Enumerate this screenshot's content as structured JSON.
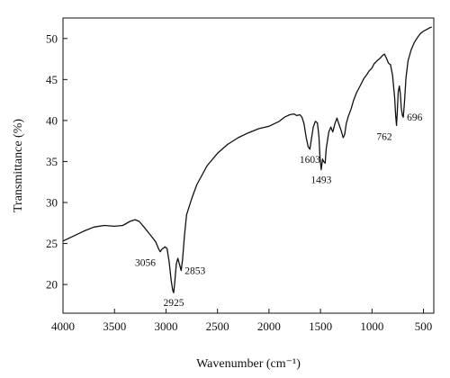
{
  "chart_data": {
    "type": "line",
    "title": "",
    "xlabel": "Wavenumber (cm⁻¹)",
    "ylabel": "Transmittance (%)",
    "xlim": [
      4000,
      400
    ],
    "ylim": [
      16.5,
      52.5
    ],
    "x_reversed": true,
    "grid": false,
    "x_ticks": [
      4000,
      3500,
      3000,
      2500,
      2000,
      1500,
      1000,
      500
    ],
    "y_ticks": [
      20,
      25,
      30,
      35,
      40,
      45,
      50
    ],
    "series": [
      {
        "color": "#111111",
        "points": [
          [
            4000,
            25.3
          ],
          [
            3900,
            25.9
          ],
          [
            3800,
            26.5
          ],
          [
            3700,
            27.0
          ],
          [
            3600,
            27.2
          ],
          [
            3500,
            27.1
          ],
          [
            3420,
            27.2
          ],
          [
            3350,
            27.7
          ],
          [
            3300,
            27.9
          ],
          [
            3260,
            27.7
          ],
          [
            3200,
            26.8
          ],
          [
            3150,
            26.0
          ],
          [
            3100,
            25.2
          ],
          [
            3070,
            24.3
          ],
          [
            3056,
            24.0
          ],
          [
            3040,
            24.3
          ],
          [
            3010,
            24.6
          ],
          [
            2990,
            24.4
          ],
          [
            2970,
            22.8
          ],
          [
            2950,
            20.5
          ],
          [
            2935,
            19.3
          ],
          [
            2925,
            19.0
          ],
          [
            2915,
            20.3
          ],
          [
            2900,
            22.5
          ],
          [
            2885,
            23.2
          ],
          [
            2870,
            22.5
          ],
          [
            2853,
            21.7
          ],
          [
            2840,
            23.0
          ],
          [
            2820,
            26.0
          ],
          [
            2800,
            28.5
          ],
          [
            2750,
            30.5
          ],
          [
            2700,
            32.2
          ],
          [
            2600,
            34.5
          ],
          [
            2500,
            36.0
          ],
          [
            2400,
            37.1
          ],
          [
            2300,
            37.9
          ],
          [
            2200,
            38.5
          ],
          [
            2100,
            39.0
          ],
          [
            2000,
            39.3
          ],
          [
            1900,
            39.9
          ],
          [
            1850,
            40.4
          ],
          [
            1800,
            40.7
          ],
          [
            1760,
            40.8
          ],
          [
            1730,
            40.6
          ],
          [
            1700,
            40.7
          ],
          [
            1680,
            40.4
          ],
          [
            1660,
            39.6
          ],
          [
            1640,
            38.0
          ],
          [
            1620,
            36.8
          ],
          [
            1603,
            36.5
          ],
          [
            1590,
            37.6
          ],
          [
            1570,
            39.2
          ],
          [
            1550,
            39.9
          ],
          [
            1530,
            39.7
          ],
          [
            1515,
            38.0
          ],
          [
            1505,
            35.6
          ],
          [
            1493,
            34.0
          ],
          [
            1480,
            35.3
          ],
          [
            1470,
            35.0
          ],
          [
            1455,
            34.8
          ],
          [
            1445,
            36.5
          ],
          [
            1420,
            38.6
          ],
          [
            1400,
            39.2
          ],
          [
            1380,
            38.6
          ],
          [
            1360,
            39.6
          ],
          [
            1340,
            40.3
          ],
          [
            1320,
            39.5
          ],
          [
            1300,
            38.8
          ],
          [
            1280,
            37.9
          ],
          [
            1265,
            38.3
          ],
          [
            1250,
            39.6
          ],
          [
            1230,
            40.5
          ],
          [
            1200,
            41.5
          ],
          [
            1180,
            42.4
          ],
          [
            1150,
            43.4
          ],
          [
            1120,
            44.1
          ],
          [
            1100,
            44.6
          ],
          [
            1080,
            45.1
          ],
          [
            1050,
            45.6
          ],
          [
            1030,
            46.0
          ],
          [
            1000,
            46.4
          ],
          [
            980,
            46.9
          ],
          [
            950,
            47.3
          ],
          [
            920,
            47.6
          ],
          [
            900,
            47.9
          ],
          [
            880,
            48.1
          ],
          [
            860,
            47.6
          ],
          [
            840,
            47.0
          ],
          [
            820,
            46.8
          ],
          [
            800,
            45.5
          ],
          [
            780,
            42.8
          ],
          [
            770,
            40.5
          ],
          [
            762,
            39.4
          ],
          [
            755,
            41.0
          ],
          [
            745,
            43.5
          ],
          [
            735,
            44.2
          ],
          [
            725,
            43.3
          ],
          [
            715,
            41.5
          ],
          [
            705,
            40.6
          ],
          [
            696,
            40.4
          ],
          [
            685,
            42.2
          ],
          [
            670,
            45.2
          ],
          [
            650,
            47.3
          ],
          [
            620,
            48.6
          ],
          [
            590,
            49.5
          ],
          [
            560,
            50.1
          ],
          [
            530,
            50.6
          ],
          [
            500,
            50.9
          ],
          [
            470,
            51.1
          ],
          [
            440,
            51.3
          ],
          [
            420,
            51.4
          ]
        ]
      }
    ],
    "annotations": [
      {
        "text": "3056",
        "x": 3056,
        "y": 24.0,
        "anchor": "end"
      },
      {
        "text": "2925",
        "x": 2925,
        "y": 19.0,
        "anchor": "middle-below"
      },
      {
        "text": "2853",
        "x": 2853,
        "y": 21.7,
        "anchor": "start"
      },
      {
        "text": "1603",
        "x": 1603,
        "y": 36.5,
        "anchor": "middle-below"
      },
      {
        "text": "1493",
        "x": 1493,
        "y": 34.0,
        "anchor": "middle-below"
      },
      {
        "text": "762",
        "x": 762,
        "y": 39.4,
        "anchor": "end"
      },
      {
        "text": "696",
        "x": 696,
        "y": 40.4,
        "anchor": "start"
      }
    ]
  }
}
